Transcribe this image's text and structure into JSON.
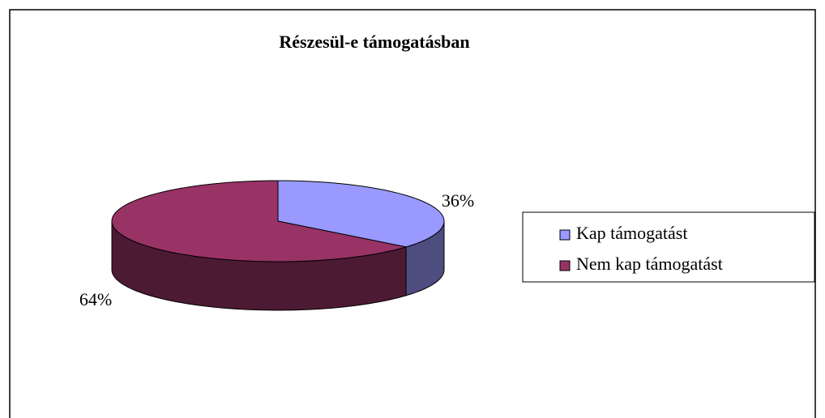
{
  "chart_data": {
    "type": "pie",
    "title": "Részesül-e támogatásban",
    "categories": [
      "Kap támogatást",
      "Nem kap támogatást"
    ],
    "values": [
      36,
      64
    ],
    "value_labels": [
      "36%",
      "64%"
    ],
    "colors": [
      "#9999ff",
      "#993366"
    ],
    "legend": "right"
  }
}
